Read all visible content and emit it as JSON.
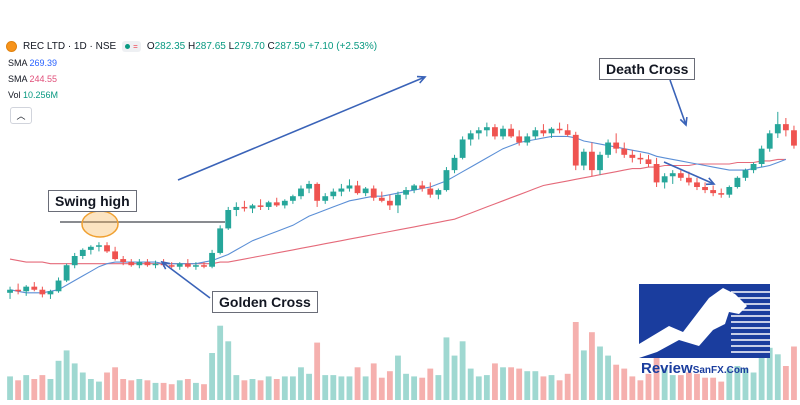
{
  "header": {
    "symbol": "REC LTD · 1D · NSE",
    "open_label": "O",
    "open": "282.35",
    "high_label": "H",
    "high": "287.65",
    "low_label": "L",
    "low": "279.70",
    "close_label": "C",
    "close": "287.50",
    "change": "+7.10 (+2.53%)"
  },
  "indicators": {
    "sma1_label": "SMA",
    "sma1_value": "269.39",
    "sma2_label": "SMA",
    "sma2_value": "244.55",
    "vol_label": "Vol",
    "vol_value": "10.256M"
  },
  "annotations": {
    "swing_high": "Swing high",
    "golden_cross": "Golden Cross",
    "death_cross": "Death Cross"
  },
  "logo": {
    "review": "Review",
    "sanfx": "SanFX.Com"
  },
  "colors": {
    "up": "#26a69a",
    "down": "#ef5350",
    "vol_up": "#9fd8d1",
    "vol_down": "#f5b0ae",
    "sma_fast": "#5b8fd6",
    "sma_slow": "#e56a7a",
    "arrow": "#3a63b8",
    "logo_blue": "#1a3d9e"
  },
  "chart_data": {
    "type": "candlestick",
    "symbol": "REC LTD",
    "timeframe": "1D",
    "exchange": "NSE",
    "y_range": [
      150,
      300
    ],
    "candles": [
      {
        "o": 156,
        "h": 160,
        "l": 152,
        "c": 158
      },
      {
        "o": 158,
        "h": 162,
        "l": 155,
        "c": 157
      },
      {
        "o": 157,
        "h": 161,
        "l": 154,
        "c": 160
      },
      {
        "o": 160,
        "h": 163,
        "l": 157,
        "c": 158
      },
      {
        "o": 158,
        "h": 160,
        "l": 153,
        "c": 155
      },
      {
        "o": 155,
        "h": 158,
        "l": 152,
        "c": 157
      },
      {
        "o": 157,
        "h": 166,
        "l": 156,
        "c": 164
      },
      {
        "o": 164,
        "h": 175,
        "l": 163,
        "c": 174
      },
      {
        "o": 174,
        "h": 182,
        "l": 172,
        "c": 180
      },
      {
        "o": 180,
        "h": 185,
        "l": 178,
        "c": 184
      },
      {
        "o": 184,
        "h": 187,
        "l": 181,
        "c": 186
      },
      {
        "o": 186,
        "h": 189,
        "l": 183,
        "c": 187
      },
      {
        "o": 187,
        "h": 189,
        "l": 182,
        "c": 183
      },
      {
        "o": 183,
        "h": 186,
        "l": 177,
        "c": 178
      },
      {
        "o": 178,
        "h": 180,
        "l": 174,
        "c": 176
      },
      {
        "o": 176,
        "h": 178,
        "l": 173,
        "c": 174
      },
      {
        "o": 174,
        "h": 178,
        "l": 172,
        "c": 176
      },
      {
        "o": 176,
        "h": 178,
        "l": 173,
        "c": 174
      },
      {
        "o": 174,
        "h": 177,
        "l": 172,
        "c": 175
      },
      {
        "o": 175,
        "h": 178,
        "l": 173,
        "c": 174
      },
      {
        "o": 174,
        "h": 176,
        "l": 172,
        "c": 173
      },
      {
        "o": 173,
        "h": 176,
        "l": 171,
        "c": 175
      },
      {
        "o": 175,
        "h": 178,
        "l": 172,
        "c": 173
      },
      {
        "o": 173,
        "h": 176,
        "l": 171,
        "c": 174
      },
      {
        "o": 174,
        "h": 176,
        "l": 172,
        "c": 173
      },
      {
        "o": 173,
        "h": 184,
        "l": 172,
        "c": 182
      },
      {
        "o": 182,
        "h": 200,
        "l": 181,
        "c": 198
      },
      {
        "o": 198,
        "h": 212,
        "l": 197,
        "c": 210
      },
      {
        "o": 210,
        "h": 215,
        "l": 206,
        "c": 212
      },
      {
        "o": 212,
        "h": 216,
        "l": 209,
        "c": 211
      },
      {
        "o": 211,
        "h": 214,
        "l": 208,
        "c": 213
      },
      {
        "o": 213,
        "h": 217,
        "l": 210,
        "c": 212
      },
      {
        "o": 212,
        "h": 216,
        "l": 210,
        "c": 215
      },
      {
        "o": 215,
        "h": 218,
        "l": 212,
        "c": 213
      },
      {
        "o": 213,
        "h": 217,
        "l": 211,
        "c": 216
      },
      {
        "o": 216,
        "h": 220,
        "l": 214,
        "c": 219
      },
      {
        "o": 219,
        "h": 226,
        "l": 217,
        "c": 224
      },
      {
        "o": 224,
        "h": 229,
        "l": 221,
        "c": 227
      },
      {
        "o": 227,
        "h": 228,
        "l": 212,
        "c": 216
      },
      {
        "o": 216,
        "h": 221,
        "l": 214,
        "c": 219
      },
      {
        "o": 219,
        "h": 224,
        "l": 217,
        "c": 222
      },
      {
        "o": 222,
        "h": 227,
        "l": 219,
        "c": 224
      },
      {
        "o": 224,
        "h": 230,
        "l": 222,
        "c": 226
      },
      {
        "o": 226,
        "h": 229,
        "l": 220,
        "c": 221
      },
      {
        "o": 221,
        "h": 225,
        "l": 219,
        "c": 224
      },
      {
        "o": 224,
        "h": 226,
        "l": 216,
        "c": 218
      },
      {
        "o": 218,
        "h": 222,
        "l": 215,
        "c": 216
      },
      {
        "o": 216,
        "h": 220,
        "l": 210,
        "c": 213
      },
      {
        "o": 213,
        "h": 222,
        "l": 208,
        "c": 220
      },
      {
        "o": 220,
        "h": 225,
        "l": 217,
        "c": 223
      },
      {
        "o": 223,
        "h": 227,
        "l": 221,
        "c": 226
      },
      {
        "o": 226,
        "h": 229,
        "l": 222,
        "c": 224
      },
      {
        "o": 224,
        "h": 228,
        "l": 218,
        "c": 220
      },
      {
        "o": 220,
        "h": 224,
        "l": 217,
        "c": 223
      },
      {
        "o": 223,
        "h": 238,
        "l": 222,
        "c": 236
      },
      {
        "o": 236,
        "h": 246,
        "l": 234,
        "c": 244
      },
      {
        "o": 244,
        "h": 258,
        "l": 243,
        "c": 256
      },
      {
        "o": 256,
        "h": 262,
        "l": 252,
        "c": 260
      },
      {
        "o": 260,
        "h": 264,
        "l": 256,
        "c": 262
      },
      {
        "o": 262,
        "h": 267,
        "l": 258,
        "c": 264
      },
      {
        "o": 264,
        "h": 266,
        "l": 256,
        "c": 258
      },
      {
        "o": 258,
        "h": 265,
        "l": 256,
        "c": 263
      },
      {
        "o": 263,
        "h": 266,
        "l": 257,
        "c": 258
      },
      {
        "o": 258,
        "h": 262,
        "l": 252,
        "c": 254
      },
      {
        "o": 254,
        "h": 260,
        "l": 252,
        "c": 258
      },
      {
        "o": 258,
        "h": 264,
        "l": 256,
        "c": 262
      },
      {
        "o": 262,
        "h": 266,
        "l": 258,
        "c": 260
      },
      {
        "o": 260,
        "h": 264,
        "l": 257,
        "c": 263
      },
      {
        "o": 263,
        "h": 267,
        "l": 260,
        "c": 262
      },
      {
        "o": 262,
        "h": 266,
        "l": 258,
        "c": 259
      },
      {
        "o": 259,
        "h": 261,
        "l": 236,
        "c": 239
      },
      {
        "o": 239,
        "h": 250,
        "l": 236,
        "c": 248
      },
      {
        "o": 248,
        "h": 254,
        "l": 232,
        "c": 236
      },
      {
        "o": 236,
        "h": 248,
        "l": 233,
        "c": 246
      },
      {
        "o": 246,
        "h": 256,
        "l": 244,
        "c": 254
      },
      {
        "o": 254,
        "h": 260,
        "l": 247,
        "c": 250
      },
      {
        "o": 250,
        "h": 254,
        "l": 244,
        "c": 246
      },
      {
        "o": 246,
        "h": 249,
        "l": 241,
        "c": 244
      },
      {
        "o": 244,
        "h": 247,
        "l": 240,
        "c": 243
      },
      {
        "o": 243,
        "h": 246,
        "l": 238,
        "c": 240
      },
      {
        "o": 240,
        "h": 244,
        "l": 225,
        "c": 228
      },
      {
        "o": 228,
        "h": 234,
        "l": 224,
        "c": 232
      },
      {
        "o": 232,
        "h": 236,
        "l": 227,
        "c": 234
      },
      {
        "o": 234,
        "h": 236,
        "l": 229,
        "c": 231
      },
      {
        "o": 231,
        "h": 235,
        "l": 226,
        "c": 228
      },
      {
        "o": 228,
        "h": 231,
        "l": 223,
        "c": 225
      },
      {
        "o": 225,
        "h": 228,
        "l": 221,
        "c": 223
      },
      {
        "o": 223,
        "h": 226,
        "l": 219,
        "c": 221
      },
      {
        "o": 221,
        "h": 224,
        "l": 218,
        "c": 220
      },
      {
        "o": 220,
        "h": 226,
        "l": 218,
        "c": 225
      },
      {
        "o": 225,
        "h": 232,
        "l": 224,
        "c": 231
      },
      {
        "o": 231,
        "h": 237,
        "l": 229,
        "c": 236
      },
      {
        "o": 236,
        "h": 241,
        "l": 234,
        "c": 240
      },
      {
        "o": 240,
        "h": 252,
        "l": 238,
        "c": 250
      },
      {
        "o": 250,
        "h": 262,
        "l": 248,
        "c": 260
      },
      {
        "o": 260,
        "h": 274,
        "l": 257,
        "c": 266
      },
      {
        "o": 266,
        "h": 270,
        "l": 258,
        "c": 262
      },
      {
        "o": 262,
        "h": 265,
        "l": 250,
        "c": 252
      }
    ],
    "sma_fast": {
      "name": "SMA",
      "value_label": "269.39",
      "values": [
        158,
        157,
        156,
        156,
        156,
        157,
        158,
        161,
        164,
        167,
        170,
        173,
        175,
        176,
        176,
        176,
        176,
        176,
        176,
        175,
        175,
        175,
        175,
        175,
        176,
        177,
        179,
        181,
        184,
        187,
        190,
        192,
        194,
        196,
        198,
        200,
        203,
        206,
        208,
        210,
        212,
        214,
        216,
        217,
        218,
        219,
        219,
        220,
        221,
        222,
        223,
        224,
        225,
        227,
        229,
        232,
        235,
        238,
        241,
        244,
        247,
        250,
        252,
        254,
        255,
        256,
        257,
        258,
        258,
        258,
        257,
        255,
        254,
        253,
        252,
        251,
        250,
        249,
        248,
        247,
        245,
        244,
        243,
        242,
        241,
        240,
        239,
        238,
        237,
        236,
        236,
        236,
        237,
        238,
        239,
        241,
        243
      ]
    },
    "sma_slow": {
      "name": "SMA",
      "value_label": "244.55",
      "values": [
        178,
        177,
        176,
        176,
        176,
        175,
        175,
        175,
        175,
        175,
        175,
        175,
        175,
        175,
        175,
        175,
        175,
        175,
        175,
        175,
        175,
        175,
        175,
        175,
        175,
        175,
        176,
        176,
        177,
        178,
        179,
        180,
        181,
        182,
        183,
        184,
        185,
        186,
        187,
        188,
        189,
        190,
        191,
        192,
        193,
        194,
        195,
        196,
        197,
        198,
        199,
        200,
        201,
        202,
        203,
        204,
        206,
        208,
        210,
        212,
        214,
        216,
        218,
        220,
        222,
        224,
        226,
        227,
        228,
        229,
        230,
        231,
        232,
        233,
        234,
        235,
        236,
        237,
        237,
        238,
        238,
        239,
        239,
        239,
        239,
        240,
        240,
        240,
        240,
        240,
        241,
        241,
        241,
        242,
        242,
        243,
        243
      ]
    },
    "volume": {
      "name": "Vol",
      "value_label": "10.256M"
    }
  }
}
